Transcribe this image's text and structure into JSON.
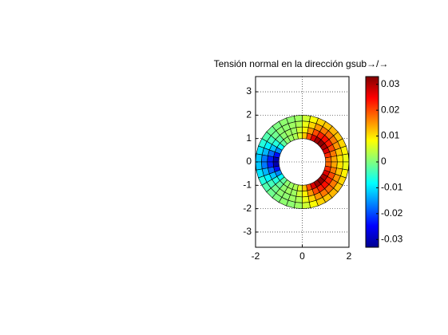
{
  "chart_data": {
    "type": "polar-mesh",
    "title": "Tensión normal en la dirección gsub→/→",
    "r": [
      1,
      1.25,
      1.5,
      1.75,
      2
    ],
    "theta": [
      0,
      10,
      20,
      30,
      40,
      50,
      60,
      70,
      80,
      90,
      100,
      110,
      120,
      130,
      140,
      150,
      160,
      170,
      180,
      190,
      200,
      210,
      220,
      230,
      240,
      250,
      260,
      270,
      280,
      290,
      300,
      310,
      320,
      330,
      340,
      350,
      360
    ],
    "values": [
      [
        0.018,
        0.022,
        0.027,
        0.03,
        0.032,
        0.031,
        0.027,
        0.02,
        0.012,
        0.006,
        0.003,
        0.002,
        0.001,
        -0.002,
        -0.008,
        -0.016,
        -0.024,
        -0.03,
        -0.03,
        -0.024,
        -0.016,
        -0.008,
        -0.002,
        0.001,
        0.002,
        0.003,
        0.006,
        0.012,
        0.02,
        0.027,
        0.031,
        0.032,
        0.03,
        0.027,
        0.022,
        0.018
      ],
      [
        0.014,
        0.017,
        0.02,
        0.023,
        0.024,
        0.023,
        0.02,
        0.015,
        0.009,
        0.005,
        0.002,
        0.002,
        0.001,
        -0.002,
        -0.006,
        -0.012,
        -0.018,
        -0.023,
        -0.023,
        -0.018,
        -0.012,
        -0.006,
        -0.002,
        0.001,
        0.002,
        0.002,
        0.005,
        0.009,
        0.015,
        0.02,
        0.023,
        0.024,
        0.023,
        0.02,
        0.017,
        0.014
      ],
      [
        0.01,
        0.012,
        0.015,
        0.017,
        0.018,
        0.017,
        0.015,
        0.011,
        0.007,
        0.003,
        0.002,
        0.001,
        0.001,
        -0.001,
        -0.004,
        -0.009,
        -0.013,
        -0.017,
        -0.017,
        -0.013,
        -0.009,
        -0.004,
        -0.001,
        0.001,
        0.001,
        0.002,
        0.003,
        0.007,
        0.011,
        0.015,
        0.017,
        0.018,
        0.017,
        0.015,
        0.012,
        0.01
      ],
      [
        0.007,
        0.009,
        0.011,
        0.012,
        0.013,
        0.012,
        0.011,
        0.008,
        0.005,
        0.002,
        0.001,
        0.001,
        0.0,
        -0.001,
        -0.003,
        -0.006,
        -0.01,
        -0.012,
        -0.012,
        -0.01,
        -0.006,
        -0.003,
        -0.001,
        0.0,
        0.001,
        0.001,
        0.002,
        0.005,
        0.008,
        0.011,
        0.012,
        0.013,
        0.012,
        0.011,
        0.009,
        0.007
      ]
    ],
    "xlim": [
      -2,
      2
    ],
    "xticks": [
      -2,
      0,
      2
    ],
    "ylim": [
      -3.65,
      3.65
    ],
    "yticks": [
      -3,
      -2,
      -1,
      0,
      1,
      2,
      3
    ],
    "clim": [
      -0.033,
      0.033
    ],
    "cticks": [
      -0.03,
      -0.02,
      -0.01,
      0,
      0.01,
      0.02,
      0.03
    ],
    "colormap": "jet",
    "grid": true
  }
}
